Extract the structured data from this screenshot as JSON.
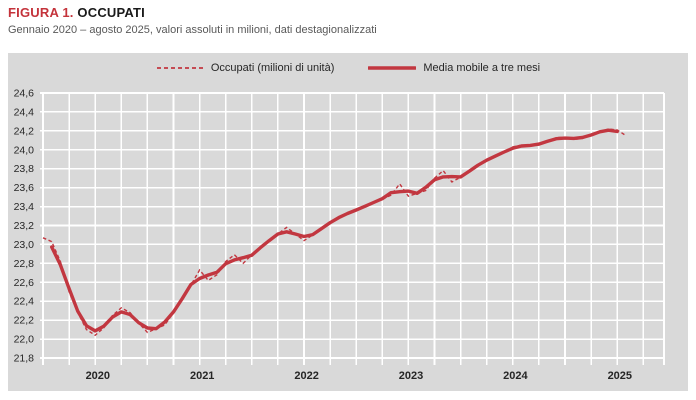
{
  "figure": {
    "label": "FIGURA 1.",
    "title": "OCCUPATI",
    "subtitle": "Gennaio 2020 – agosto 2025, valori assoluti in milioni, dati destagionalizzati"
  },
  "legend": [
    {
      "label": "Occupati (milioni di unità)",
      "style": "dashed"
    },
    {
      "label": "Media mobile a tre mesi",
      "style": "solid"
    }
  ],
  "colors": {
    "title_red": "#c4333b",
    "line_red": "#c23740",
    "panel_bg": "#d9d9d9",
    "grid": "#ffffff",
    "axis_text": "#262626",
    "subtitle_text": "#595959"
  },
  "chart_data": {
    "type": "line",
    "title": "OCCUPATI",
    "subtitle": "Gennaio 2020 – agosto 2025, valori assoluti in milioni, dati destagionalizzati",
    "x_start_month": "2020-01",
    "x_end_month": "2025-08",
    "x_tick_years": [
      "2020",
      "2021",
      "2022",
      "2023",
      "2024",
      "2025"
    ],
    "y_tick_labels": [
      "24,6",
      "24,4",
      "24,2",
      "24,0",
      "23,8",
      "23,6",
      "23,4",
      "23,2",
      "23,0",
      "22,8",
      "22,6",
      "22,4",
      "22,2",
      "22,0",
      "21,8"
    ],
    "ylim": [
      21.8,
      24.6
    ],
    "y_step": 0.2,
    "grid": "white-on-gray, vertical lines quarterly",
    "legend_position": "top-center",
    "series": [
      {
        "name": "Occupati (milioni di unità)",
        "style": "dashed",
        "unit": "milioni",
        "values": [
          23.07,
          23.03,
          22.82,
          22.5,
          22.28,
          22.1,
          22.04,
          22.12,
          22.25,
          22.33,
          22.28,
          22.17,
          22.07,
          22.11,
          22.15,
          22.28,
          22.43,
          22.57,
          22.73,
          22.62,
          22.68,
          22.82,
          22.89,
          22.8,
          22.89,
          22.97,
          23.04,
          23.11,
          23.18,
          23.11,
          23.04,
          23.1,
          23.17,
          23.23,
          23.29,
          23.33,
          23.36,
          23.4,
          23.45,
          23.48,
          23.52,
          23.64,
          23.51,
          23.54,
          23.57,
          23.7,
          23.78,
          23.66,
          23.71,
          23.77,
          23.84,
          23.9,
          23.93,
          23.97,
          24.03,
          24.05,
          24.04,
          24.05,
          24.09,
          24.13,
          24.13,
          24.11,
          24.12,
          24.16,
          24.19,
          24.22,
          24.21,
          24.15
        ]
      },
      {
        "name": "Media mobile a tre mesi",
        "style": "solid",
        "derived": "centered 3-month moving average of the Occupati series"
      }
    ]
  }
}
